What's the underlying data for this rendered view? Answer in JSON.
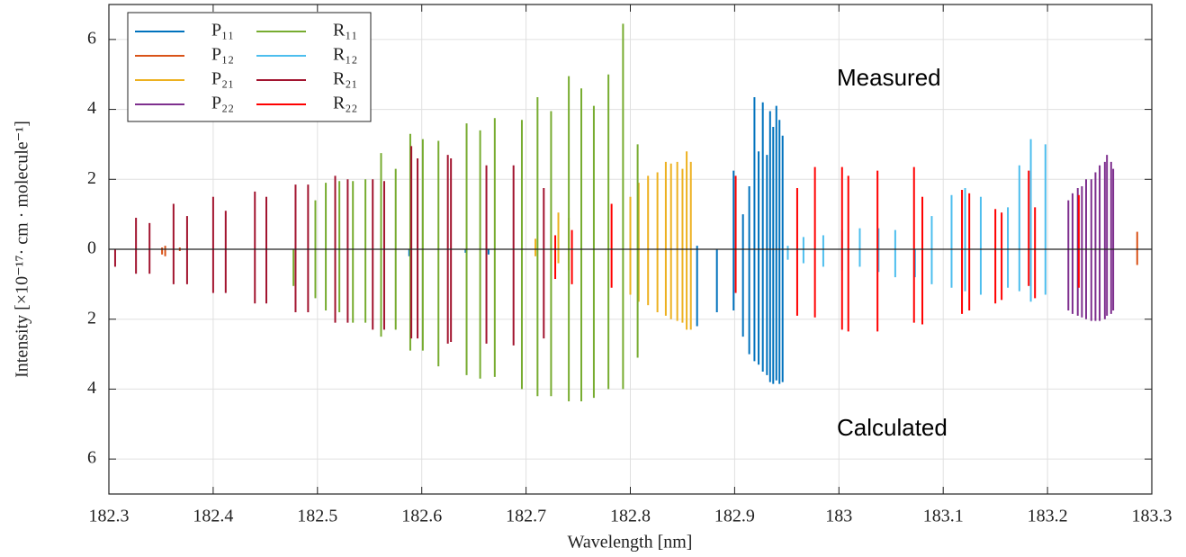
{
  "chart_data": {
    "type": "stick",
    "xlabel": "Wavelength [nm]",
    "ylabel": "Intensity [×10⁻¹⁷· cm · molecule⁻¹]",
    "annotations": [
      "Measured",
      "Calculated"
    ],
    "xlim": [
      182.3,
      183.3
    ],
    "xticks": [
      182.3,
      182.4,
      182.5,
      182.6,
      182.7,
      182.8,
      182.9,
      183,
      183.1,
      183.2,
      183.3
    ],
    "ylim": [
      -7,
      7
    ],
    "yticks": [
      {
        "value": -6,
        "label": "6"
      },
      {
        "value": -4,
        "label": "4"
      },
      {
        "value": -2,
        "label": "2"
      },
      0,
      2,
      4,
      6
    ],
    "grid": true,
    "legend": "upper-left",
    "series": [
      {
        "name": "P₁₁",
        "color": "#0072bd",
        "x": [
          182.588,
          182.642,
          182.664,
          182.864,
          182.883,
          182.899,
          182.908,
          182.914,
          182.919,
          182.923,
          182.927,
          182.931,
          182.934,
          182.937,
          182.94,
          182.943,
          182.946
        ],
        "values": [
          0,
          0,
          0,
          0.1,
          0,
          2.25,
          1.0,
          1.8,
          4.35,
          2.8,
          4.2,
          2.7,
          3.95,
          3.5,
          4.1,
          3.7,
          3.25
        ],
        "calculated": [
          -0.2,
          -0.1,
          -0.15,
          -2.2,
          -1.8,
          -1.75,
          -2.5,
          -3.0,
          -3.2,
          -3.3,
          -3.5,
          -3.6,
          -3.8,
          -3.85,
          -3.75,
          -3.85,
          -3.8
        ]
      },
      {
        "name": "P₁₂",
        "color": "#d95319",
        "x": [
          182.351,
          182.354,
          182.368,
          183.286
        ],
        "values": [
          0.05,
          0.1,
          0.05,
          0.5
        ],
        "calculated": [
          -0.15,
          -0.2,
          -0.05,
          -0.45
        ]
      },
      {
        "name": "P₂₁",
        "color": "#edb120",
        "x": [
          182.709,
          182.731,
          182.741,
          182.8,
          182.808,
          182.817,
          182.826,
          182.834,
          182.839,
          182.845,
          182.85,
          182.854,
          182.858
        ],
        "values": [
          0.3,
          1.05,
          0.9,
          1.5,
          1.9,
          2.1,
          2.2,
          2.5,
          2.45,
          2.5,
          2.3,
          2.8,
          2.5
        ],
        "calculated": [
          -0.2,
          -0.4,
          -0.6,
          -1.3,
          -1.5,
          -1.6,
          -1.8,
          -1.9,
          -2.0,
          -2.05,
          -2.1,
          -2.3,
          -2.3
        ]
      },
      {
        "name": "P₂₂",
        "color": "#7e2f8e",
        "x": [
          183.22,
          183.224,
          183.229,
          183.233,
          183.237,
          183.242,
          183.246,
          183.25,
          183.255,
          183.257,
          183.261,
          183.263
        ],
        "values": [
          1.4,
          1.6,
          1.75,
          1.8,
          2.0,
          2.0,
          2.2,
          2.4,
          2.5,
          2.7,
          2.5,
          2.3
        ],
        "calculated": [
          -1.75,
          -1.85,
          -1.9,
          -1.95,
          -2.0,
          -2.05,
          -2.05,
          -2.05,
          -2.0,
          -1.9,
          -1.85,
          -1.75
        ]
      },
      {
        "name": "R₁₁",
        "color": "#77ac30",
        "x": [
          182.477,
          182.498,
          182.508,
          182.521,
          182.534,
          182.546,
          182.561,
          182.575,
          182.589,
          182.601,
          182.616,
          182.643,
          182.656,
          182.67,
          182.696,
          182.711,
          182.724,
          182.741,
          182.753,
          182.765,
          182.779,
          182.793,
          182.807
        ],
        "values": [
          0,
          1.4,
          1.9,
          1.95,
          1.95,
          2.0,
          2.75,
          2.3,
          3.3,
          3.15,
          3.1,
          3.6,
          3.4,
          3.75,
          3.7,
          4.35,
          3.95,
          4.95,
          4.6,
          4.1,
          5.0,
          6.45,
          3.0
        ],
        "calculated": [
          -1.05,
          -1.4,
          -1.75,
          -1.8,
          -2.1,
          -2.1,
          -2.5,
          -2.3,
          -2.9,
          -2.9,
          -3.35,
          -3.6,
          -3.7,
          -3.65,
          -4.0,
          -4.2,
          -4.2,
          -4.35,
          -4.35,
          -4.25,
          -4.0,
          -4.0,
          -3.1
        ]
      },
      {
        "name": "R₁₂",
        "color": "#4dbeee",
        "x": [
          182.951,
          182.966,
          182.985,
          183.003,
          183.02,
          183.038,
          183.054,
          183.073,
          183.089,
          183.108,
          183.121,
          183.136,
          183.162,
          183.173,
          183.184,
          183.198
        ],
        "values": [
          0.1,
          0.35,
          0.4,
          0.55,
          0.6,
          0.6,
          0.55,
          0,
          0.95,
          1.55,
          1.75,
          1.5,
          1.2,
          2.4,
          3.15,
          3.0
        ],
        "calculated": [
          -0.3,
          -0.4,
          -0.5,
          -0.6,
          -0.5,
          -0.65,
          -0.8,
          -0.8,
          -1.0,
          -1.1,
          -1.2,
          -1.3,
          -1.1,
          -1.2,
          -1.5,
          -1.3
        ]
      },
      {
        "name": "R₂₁",
        "color": "#a2142f",
        "x": [
          182.306,
          182.326,
          182.339,
          182.362,
          182.375,
          182.4,
          182.412,
          182.44,
          182.451,
          182.479,
          182.491,
          182.517,
          182.529,
          182.553,
          182.564,
          182.59,
          182.596,
          182.625,
          182.628,
          182.662,
          182.688,
          182.717
        ],
        "values": [
          0,
          0.9,
          0.75,
          1.3,
          0.95,
          1.5,
          1.1,
          1.65,
          1.5,
          1.85,
          1.85,
          2.1,
          2.0,
          2.0,
          1.95,
          2.95,
          2.6,
          2.7,
          2.6,
          2.4,
          2.4,
          1.75
        ],
        "calculated": [
          -0.5,
          -0.7,
          -0.7,
          -1.0,
          -1.0,
          -1.25,
          -1.25,
          -1.55,
          -1.55,
          -1.8,
          -1.8,
          -2.1,
          -2.1,
          -2.3,
          -2.3,
          -2.55,
          -2.55,
          -2.7,
          -2.65,
          -2.7,
          -2.75,
          -2.55
        ]
      },
      {
        "name": "R₂₂",
        "color": "#ff0000",
        "x": [
          182.728,
          182.744,
          182.782,
          182.901,
          182.96,
          182.977,
          183.003,
          183.009,
          183.037,
          183.072,
          183.08,
          183.118,
          183.125,
          183.15,
          183.156,
          183.182,
          183.188,
          183.23
        ],
        "values": [
          0.4,
          0.55,
          1.3,
          2.1,
          1.75,
          2.35,
          2.35,
          2.1,
          2.25,
          2.35,
          1.5,
          1.7,
          1.6,
          1.15,
          1.05,
          2.25,
          1.2,
          1.55
        ],
        "calculated": [
          -0.85,
          -1.0,
          -1.1,
          -1.25,
          -1.9,
          -1.95,
          -2.3,
          -2.35,
          -2.35,
          -2.1,
          -2.15,
          -1.85,
          -1.75,
          -1.55,
          -1.45,
          -1.05,
          -1.4,
          -1.1
        ]
      }
    ]
  }
}
